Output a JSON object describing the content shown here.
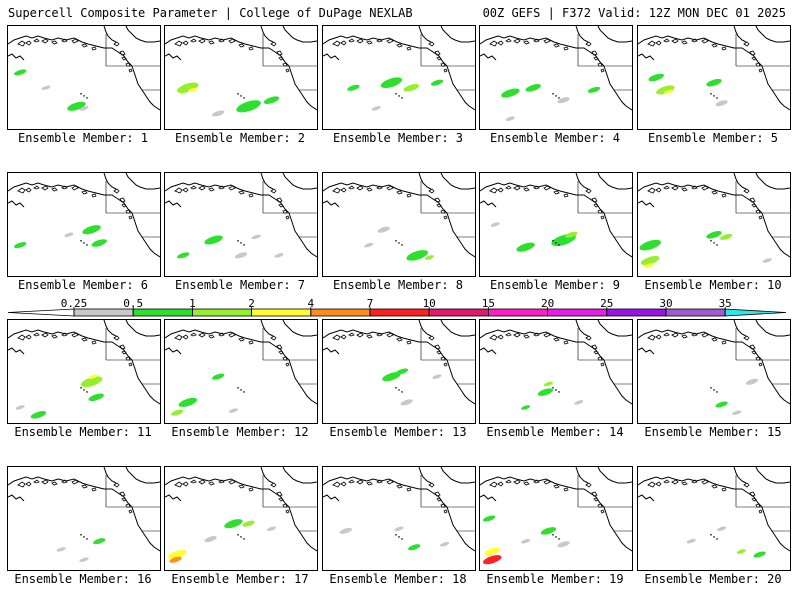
{
  "header": {
    "left": "Supercell Composite Parameter | College of DuPage NEXLAB",
    "right": "00Z GEFS | F372 Valid: 12Z MON DEC 01 2025"
  },
  "caption_prefix": "Ensemble Member:",
  "members": [
    {
      "label": "Ensemble Member: 1"
    },
    {
      "label": "Ensemble Member: 2"
    },
    {
      "label": "Ensemble Member: 3"
    },
    {
      "label": "Ensemble Member: 4"
    },
    {
      "label": "Ensemble Member: 5"
    },
    {
      "label": "Ensemble Member: 6"
    },
    {
      "label": "Ensemble Member: 7"
    },
    {
      "label": "Ensemble Member: 8"
    },
    {
      "label": "Ensemble Member: 9"
    },
    {
      "label": "Ensemble Member: 10"
    },
    {
      "label": "Ensemble Member: 11"
    },
    {
      "label": "Ensemble Member: 12"
    },
    {
      "label": "Ensemble Member: 13"
    },
    {
      "label": "Ensemble Member: 14"
    },
    {
      "label": "Ensemble Member: 15"
    },
    {
      "label": "Ensemble Member: 16"
    },
    {
      "label": "Ensemble Member: 17"
    },
    {
      "label": "Ensemble Member: 18"
    },
    {
      "label": "Ensemble Member: 19"
    },
    {
      "label": "Ensemble Member: 20"
    }
  ],
  "colorbar": {
    "ticks": [
      "0.25",
      "0.5",
      "1",
      "2",
      "4",
      "7",
      "10",
      "15",
      "20",
      "25",
      "30",
      "35"
    ],
    "colors": [
      "#c8c8c8",
      "#2ee02e",
      "#96ee2e",
      "#ffff32",
      "#ff8c1e",
      "#ff2020",
      "#e0186e",
      "#ff1ec8",
      "#e61ee6",
      "#9b14e6",
      "#a05ad2",
      "#32e6e6"
    ]
  }
}
